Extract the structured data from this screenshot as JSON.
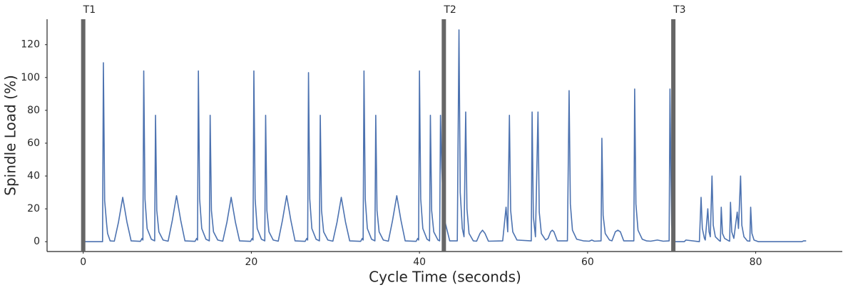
{
  "chart_data": {
    "type": "line",
    "xlabel": "Cycle Time (seconds)",
    "ylabel": "Spindle Load (%)",
    "xlim": [
      -4.3,
      90.3
    ],
    "ylim": [
      -6,
      135.5
    ],
    "xticks": [
      0,
      20,
      40,
      60,
      80
    ],
    "yticks": [
      0,
      20,
      40,
      60,
      80,
      100,
      120
    ],
    "grid": false,
    "markers": [
      {
        "x": 0,
        "label": "T1"
      },
      {
        "x": 42.9,
        "label": "T2"
      },
      {
        "x": 70.2,
        "label": "T3"
      }
    ],
    "marker_color": "#666666",
    "series": [
      {
        "color": "#4c72b0",
        "x": [
          0,
          2.2,
          2.3,
          2.4,
          2.55,
          2.8,
          2.9,
          3.2,
          3.7,
          4.2,
          4.7,
          5.2,
          5.7,
          6.8,
          7.0,
          7.1,
          7.2,
          7.35,
          7.6,
          8.1,
          8.5,
          8.6,
          8.75,
          9.0,
          9.5,
          10.1,
          10.6,
          11.1,
          11.6,
          12.1,
          13.3,
          13.5,
          13.6,
          13.7,
          13.85,
          14.1,
          14.6,
          15.0,
          15.1,
          15.25,
          15.5,
          16.0,
          16.6,
          17.1,
          17.6,
          18.1,
          18.6,
          19.9,
          20.1,
          20.2,
          20.3,
          20.45,
          20.7,
          21.2,
          21.6,
          21.7,
          21.85,
          22.1,
          22.6,
          23.2,
          23.7,
          24.2,
          24.7,
          25.2,
          26.4,
          26.6,
          26.7,
          26.8,
          26.95,
          27.2,
          27.7,
          28.1,
          28.2,
          28.35,
          28.6,
          29.1,
          29.7,
          30.2,
          30.7,
          31.2,
          31.7,
          33.0,
          33.2,
          33.3,
          33.4,
          33.55,
          33.8,
          34.3,
          34.7,
          34.8,
          34.95,
          35.2,
          35.7,
          36.3,
          36.8,
          37.3,
          37.8,
          38.3,
          39.6,
          39.8,
          39.9,
          40.0,
          40.15,
          40.4,
          40.9,
          41.2,
          41.3,
          41.45,
          41.7,
          42.2,
          42.4,
          42.5,
          42.65,
          42.9,
          43.6,
          44.5,
          44.7,
          44.85,
          45.1,
          45.3,
          45.5,
          45.65,
          45.9,
          46.4,
          46.8,
          47.2,
          47.5,
          47.8,
          48.2,
          49.9,
          50.3,
          50.5,
          50.7,
          50.85,
          51.1,
          51.6,
          53.3,
          53.4,
          53.55,
          53.8,
          54.1,
          54.25,
          54.5,
          55.0,
          55.3,
          55.6,
          55.8,
          56.0,
          56.4,
          57.6,
          57.8,
          57.95,
          58.2,
          58.7,
          59.5,
          60.2,
          60.5,
          60.8,
          61.6,
          61.7,
          61.85,
          62.1,
          62.6,
          62.9,
          63.3,
          63.6,
          63.9,
          64.3,
          65.5,
          65.6,
          65.75,
          66.0,
          66.5,
          67.0,
          67.5,
          68.3,
          69.0,
          69.7,
          69.8,
          69.9,
          70.0,
          70.2,
          71.0,
          71.5,
          71.7,
          73.3,
          73.5,
          73.65,
          73.9,
          74.0,
          74.3,
          74.45,
          74.6,
          74.8,
          74.95,
          75.2,
          75.7,
          75.8,
          75.9,
          76.05,
          76.3,
          76.8,
          76.9,
          77.0,
          77.15,
          77.4,
          77.8,
          77.95,
          78.2,
          78.35,
          78.6,
          79.0,
          79.3,
          79.4,
          79.55,
          79.8,
          80.3,
          85.5,
          85.7,
          86.0
        ],
        "values": [
          0,
          0,
          0,
          109,
          25,
          10,
          5,
          0.5,
          0.3,
          12,
          27,
          12,
          0.5,
          0.2,
          2,
          1,
          104,
          26,
          8,
          1.5,
          0.5,
          77,
          19,
          6,
          1,
          0.3,
          13,
          28,
          13,
          0.5,
          0.2,
          2,
          1,
          104,
          26,
          8,
          1.5,
          0.5,
          77,
          19,
          6,
          1,
          0.3,
          12,
          27,
          12,
          0.5,
          0.2,
          2,
          1,
          104,
          26,
          8,
          1.5,
          0.5,
          77,
          19,
          6,
          1,
          0.3,
          13,
          28,
          13,
          0.5,
          0.2,
          2,
          1,
          103,
          26,
          8,
          1.5,
          0.5,
          77,
          19,
          6,
          1,
          0.3,
          12,
          27,
          12,
          0.5,
          0.2,
          2,
          1,
          104,
          26,
          8,
          1.5,
          0.5,
          77,
          19,
          6,
          1,
          0.3,
          13,
          28,
          13,
          0.5,
          0.2,
          2,
          1,
          104,
          26,
          8,
          1.5,
          0.5,
          77,
          19,
          6,
          1,
          0.5,
          77,
          45,
          15,
          0.5,
          0.5,
          129,
          30,
          8,
          3,
          79,
          20,
          5,
          0.5,
          0.3,
          5,
          7,
          5,
          0.3,
          0.5,
          21,
          6,
          77,
          19,
          6,
          1,
          0.5,
          79,
          15,
          3,
          79,
          18,
          5,
          1,
          2,
          6,
          7,
          6,
          0.5,
          0.5,
          92,
          23,
          7,
          1.5,
          0.5,
          0.3,
          1,
          0.3,
          0.5,
          63,
          16,
          5,
          1,
          0.5,
          6,
          7,
          6,
          0.5,
          0.5,
          93,
          23,
          7,
          1.5,
          0.5,
          0.3,
          1,
          0.3,
          0.5,
          93,
          46,
          10,
          0,
          0,
          0,
          1,
          0,
          27,
          8,
          2,
          1,
          20,
          6,
          3,
          40,
          10,
          3,
          0.5,
          0.3,
          21,
          5,
          2,
          0.5,
          0.3,
          24,
          6,
          2,
          18,
          8,
          40,
          10,
          3,
          0.5,
          0.3,
          21,
          5,
          1,
          0,
          0,
          0.5,
          0.5
        ]
      }
    ]
  }
}
